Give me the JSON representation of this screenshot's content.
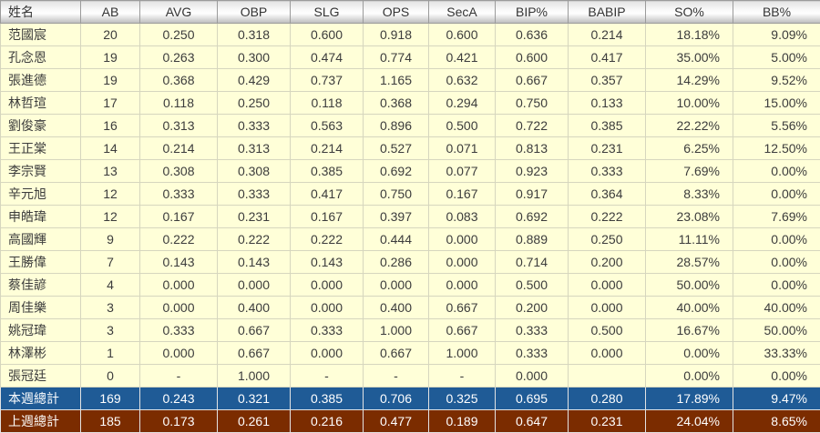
{
  "chart_data": {
    "type": "table",
    "title": "",
    "columns": [
      "姓名",
      "AB",
      "AVG",
      "OBP",
      "SLG",
      "OPS",
      "SecA",
      "BIP%",
      "BABIP",
      "SO%",
      "BB%"
    ],
    "rows": [
      [
        "范國宸",
        "20",
        "0.250",
        "0.318",
        "0.600",
        "0.918",
        "0.600",
        "0.636",
        "0.214",
        "18.18%",
        "9.09%"
      ],
      [
        "孔念恩",
        "19",
        "0.263",
        "0.300",
        "0.474",
        "0.774",
        "0.421",
        "0.600",
        "0.417",
        "35.00%",
        "5.00%"
      ],
      [
        "張進德",
        "19",
        "0.368",
        "0.429",
        "0.737",
        "1.165",
        "0.632",
        "0.667",
        "0.357",
        "14.29%",
        "9.52%"
      ],
      [
        "林哲瑄",
        "17",
        "0.118",
        "0.250",
        "0.118",
        "0.368",
        "0.294",
        "0.750",
        "0.133",
        "10.00%",
        "15.00%"
      ],
      [
        "劉俊豪",
        "16",
        "0.313",
        "0.333",
        "0.563",
        "0.896",
        "0.500",
        "0.722",
        "0.385",
        "22.22%",
        "5.56%"
      ],
      [
        "王正棠",
        "14",
        "0.214",
        "0.313",
        "0.214",
        "0.527",
        "0.071",
        "0.813",
        "0.231",
        "6.25%",
        "12.50%"
      ],
      [
        "李宗賢",
        "13",
        "0.308",
        "0.308",
        "0.385",
        "0.692",
        "0.077",
        "0.923",
        "0.333",
        "7.69%",
        "0.00%"
      ],
      [
        "辛元旭",
        "12",
        "0.333",
        "0.333",
        "0.417",
        "0.750",
        "0.167",
        "0.917",
        "0.364",
        "8.33%",
        "0.00%"
      ],
      [
        "申皓瑋",
        "12",
        "0.167",
        "0.231",
        "0.167",
        "0.397",
        "0.083",
        "0.692",
        "0.222",
        "23.08%",
        "7.69%"
      ],
      [
        "高國輝",
        "9",
        "0.222",
        "0.222",
        "0.222",
        "0.444",
        "0.000",
        "0.889",
        "0.250",
        "11.11%",
        "0.00%"
      ],
      [
        "王勝偉",
        "7",
        "0.143",
        "0.143",
        "0.143",
        "0.286",
        "0.000",
        "0.714",
        "0.200",
        "28.57%",
        "0.00%"
      ],
      [
        "蔡佳諺",
        "4",
        "0.000",
        "0.000",
        "0.000",
        "0.000",
        "0.000",
        "0.500",
        "0.000",
        "50.00%",
        "0.00%"
      ],
      [
        "周佳樂",
        "3",
        "0.000",
        "0.400",
        "0.000",
        "0.400",
        "0.667",
        "0.200",
        "0.000",
        "40.00%",
        "40.00%"
      ],
      [
        "姚冠瑋",
        "3",
        "0.333",
        "0.667",
        "0.333",
        "1.000",
        "0.667",
        "0.333",
        "0.500",
        "16.67%",
        "50.00%"
      ],
      [
        "林澤彬",
        "1",
        "0.000",
        "0.667",
        "0.000",
        "0.667",
        "1.000",
        "0.333",
        "0.000",
        "0.00%",
        "33.33%"
      ],
      [
        "張冠廷",
        "0",
        "-",
        "1.000",
        "-",
        "-",
        "-",
        "0.000",
        "",
        "0.00%",
        "0.00%"
      ]
    ],
    "summary": [
      {
        "key": "this-week",
        "label": "本週總計",
        "values": [
          "169",
          "0.243",
          "0.321",
          "0.385",
          "0.706",
          "0.325",
          "0.695",
          "0.280",
          "17.89%",
          "9.47%"
        ]
      },
      {
        "key": "last-week",
        "label": "上週總計",
        "values": [
          "185",
          "0.173",
          "0.261",
          "0.216",
          "0.477",
          "0.189",
          "0.647",
          "0.231",
          "24.04%",
          "8.65%"
        ]
      }
    ]
  },
  "colors": {
    "row_bg": "#FFFFD8",
    "grid_line": "#D6D6BE",
    "header_border": "#9B9B9B",
    "this_week_bg": "#1F5B96",
    "last_week_bg": "#7B2C00",
    "summary_text": "#FFFFFF",
    "data_text": "#3C3C3C"
  }
}
